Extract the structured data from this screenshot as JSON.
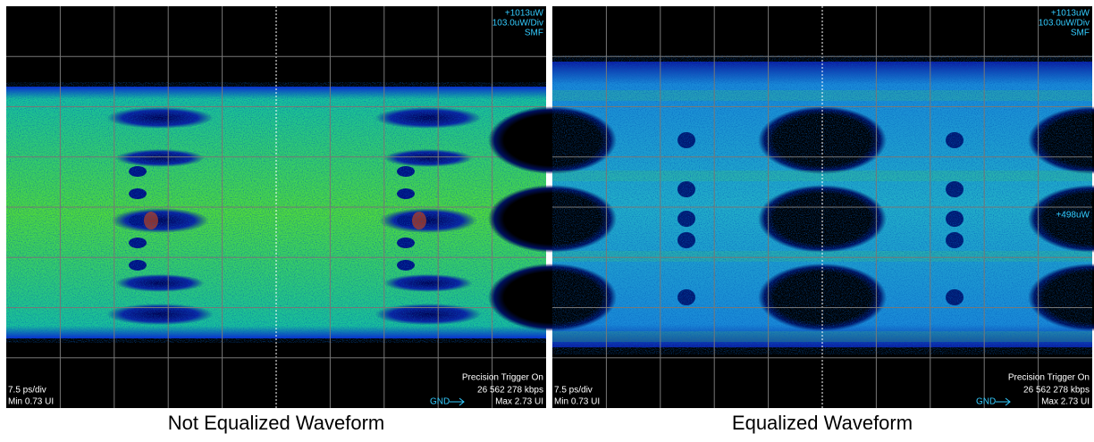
{
  "panels": [
    {
      "caption": "Not Equalized Waveform",
      "top_labels": [
        "+1013uW",
        "103.0uW/Div",
        "SMF"
      ],
      "timebase": "7.5 ps/div",
      "min_ui": "Min 0.73 UI",
      "trigger": "Precision Trigger On",
      "rate": "26 562 278 kbps",
      "gnd": "GND",
      "max_ui": "Max 2.73 UI"
    },
    {
      "caption": "Equalized Waveform",
      "top_labels": [
        "+1013uW",
        "103.0uW/Div",
        "SMF"
      ],
      "timebase": "7.5 ps/div",
      "min_ui": "Min 0.73 UI",
      "trigger": "Precision Trigger On",
      "rate": "26 562 278 kbps",
      "gnd": "GND",
      "max_ui": "Max 2.73 UI",
      "marker": "+498uW"
    }
  ]
}
